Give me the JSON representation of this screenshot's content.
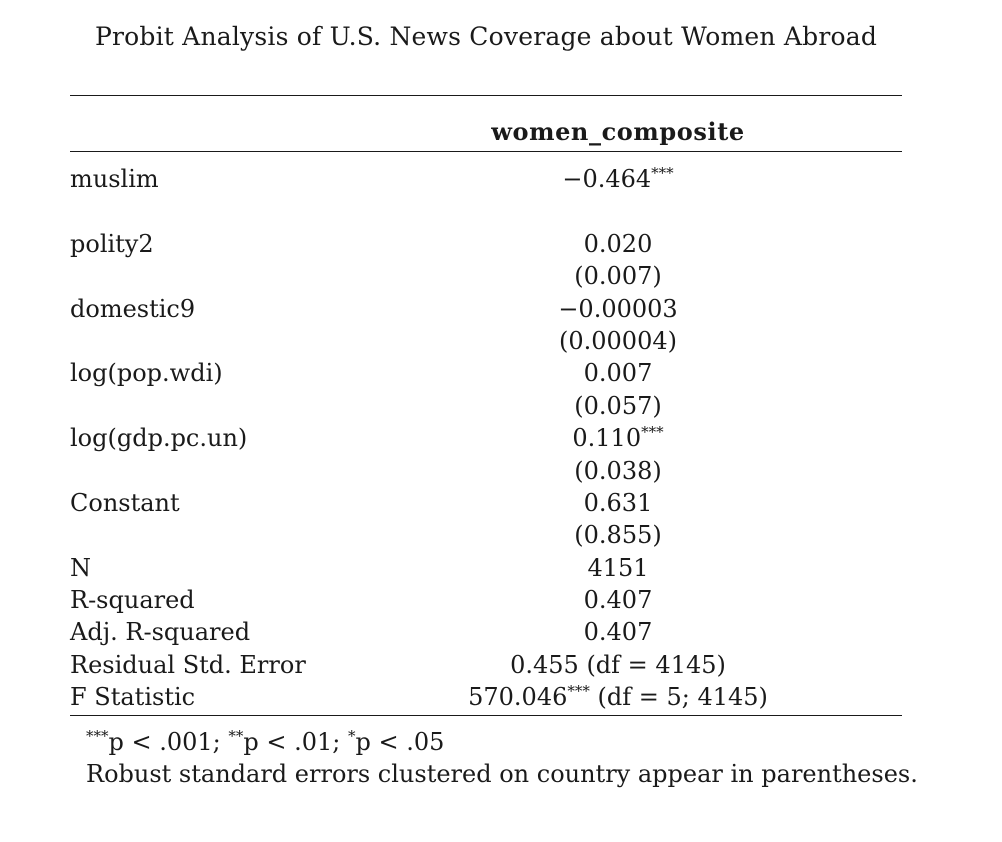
{
  "title": "Probit Analysis of U.S. News Coverage about Women Abroad",
  "column_header": "women_composite",
  "rows": [
    {
      "label": "muslim",
      "value": "−0.464",
      "sig": "***"
    },
    {
      "label": "",
      "value": "",
      "sig": ""
    },
    {
      "label": "polity2",
      "value": "0.020",
      "sig": ""
    },
    {
      "label": "",
      "value": "(0.007)",
      "sig": ""
    },
    {
      "label": "domestic9",
      "value": "−0.00003",
      "sig": ""
    },
    {
      "label": "",
      "value": "(0.00004)",
      "sig": ""
    },
    {
      "label": "log(pop.wdi)",
      "value": "0.007",
      "sig": ""
    },
    {
      "label": "",
      "value": "(0.057)",
      "sig": ""
    },
    {
      "label": "log(gdp.pc.un)",
      "value": "0.110",
      "sig": "***"
    },
    {
      "label": "",
      "value": "(0.038)",
      "sig": ""
    },
    {
      "label": "Constant",
      "value": "0.631",
      "sig": ""
    },
    {
      "label": "",
      "value": "(0.855)",
      "sig": ""
    },
    {
      "label": "N",
      "value": "4151",
      "sig": ""
    },
    {
      "label": "R-squared",
      "value": "0.407",
      "sig": ""
    },
    {
      "label": "Adj. R-squared",
      "value": "0.407",
      "sig": ""
    },
    {
      "label": "Residual Std. Error",
      "value": "0.455 (df = 4145)",
      "sig": ""
    },
    {
      "label": "F Statistic",
      "value": "570.046",
      "sig": "***",
      "suffix": " (df = 5; 4145)"
    }
  ],
  "notes": {
    "significance": [
      {
        "stars": "***",
        "text": "p < .001; "
      },
      {
        "stars": "**",
        "text": "p < .01; "
      },
      {
        "stars": "*",
        "text": "p < .05"
      }
    ],
    "footnote": "Robust standard errors clustered on country appear in parentheses."
  }
}
